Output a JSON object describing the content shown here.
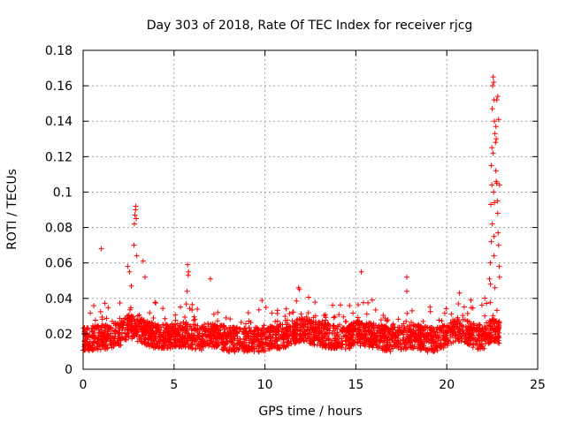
{
  "chart_data": {
    "type": "scatter",
    "title": "Day 303 of 2018, Rate Of TEC Index for receiver rjcg",
    "xlabel": "GPS time / hours",
    "ylabel": "ROTI / TECUs",
    "xlim": [
      0,
      25
    ],
    "ylim": [
      0,
      0.18
    ],
    "x_ticks": [
      "0",
      "5",
      "10",
      "15",
      "20",
      "25"
    ],
    "y_ticks": [
      "0",
      "0.02",
      "0.04",
      "0.06",
      "0.08",
      "0.1",
      "0.12",
      "0.14",
      "0.16",
      "0.18"
    ],
    "x_tick_values": [
      0,
      5,
      10,
      15,
      20,
      25
    ],
    "y_tick_values": [
      0,
      0.02,
      0.04,
      0.06,
      0.08,
      0.1,
      0.12,
      0.14,
      0.16,
      0.18
    ],
    "grid": true,
    "marker": "+",
    "color": "#ff0000",
    "series": [
      {
        "name": "ROTI",
        "baseline_profile": [
          [
            0.0,
            0.016
          ],
          [
            0.5,
            0.017
          ],
          [
            1.0,
            0.017
          ],
          [
            1.5,
            0.018
          ],
          [
            2.0,
            0.019
          ],
          [
            2.5,
            0.024
          ],
          [
            3.0,
            0.022
          ],
          [
            3.5,
            0.019
          ],
          [
            4.0,
            0.018
          ],
          [
            4.5,
            0.018
          ],
          [
            5.0,
            0.018
          ],
          [
            5.5,
            0.019
          ],
          [
            6.0,
            0.018
          ],
          [
            6.5,
            0.017
          ],
          [
            7.0,
            0.019
          ],
          [
            7.5,
            0.018
          ],
          [
            8.0,
            0.016
          ],
          [
            8.5,
            0.016
          ],
          [
            9.0,
            0.016
          ],
          [
            9.5,
            0.016
          ],
          [
            10.0,
            0.016
          ],
          [
            10.5,
            0.017
          ],
          [
            11.0,
            0.018
          ],
          [
            11.5,
            0.02
          ],
          [
            12.0,
            0.022
          ],
          [
            12.5,
            0.02
          ],
          [
            13.0,
            0.019
          ],
          [
            13.5,
            0.018
          ],
          [
            14.0,
            0.018
          ],
          [
            14.5,
            0.017
          ],
          [
            15.0,
            0.02
          ],
          [
            15.5,
            0.019
          ],
          [
            16.0,
            0.018
          ],
          [
            16.5,
            0.017
          ],
          [
            17.0,
            0.016
          ],
          [
            17.5,
            0.017
          ],
          [
            18.0,
            0.018
          ],
          [
            18.5,
            0.017
          ],
          [
            19.0,
            0.016
          ],
          [
            19.5,
            0.016
          ],
          [
            20.0,
            0.018
          ],
          [
            20.5,
            0.022
          ],
          [
            21.0,
            0.021
          ],
          [
            21.5,
            0.018
          ],
          [
            22.0,
            0.017
          ],
          [
            22.5,
            0.022
          ],
          [
            22.9,
            0.02
          ]
        ],
        "peaks": [
          [
            1.0,
            0.068
          ],
          [
            2.45,
            0.058
          ],
          [
            2.55,
            0.055
          ],
          [
            2.65,
            0.047
          ],
          [
            2.8,
            0.07
          ],
          [
            2.82,
            0.082
          ],
          [
            2.85,
            0.087
          ],
          [
            2.88,
            0.09
          ],
          [
            2.9,
            0.092
          ],
          [
            2.92,
            0.085
          ],
          [
            2.95,
            0.064
          ],
          [
            3.3,
            0.061
          ],
          [
            3.4,
            0.052
          ],
          [
            5.75,
            0.059
          ],
          [
            5.8,
            0.055
          ],
          [
            5.78,
            0.053
          ],
          [
            5.72,
            0.044
          ],
          [
            7.0,
            0.051
          ],
          [
            11.85,
            0.046
          ],
          [
            11.9,
            0.045
          ],
          [
            15.3,
            0.055
          ],
          [
            17.8,
            0.052
          ],
          [
            17.8,
            0.044
          ],
          [
            20.7,
            0.043
          ],
          [
            22.35,
            0.051
          ],
          [
            22.4,
            0.06
          ],
          [
            22.42,
            0.093
          ],
          [
            22.45,
            0.115
          ],
          [
            22.48,
            0.125
          ],
          [
            22.5,
            0.147
          ],
          [
            22.52,
            0.16
          ],
          [
            22.55,
            0.165
          ],
          [
            22.58,
            0.162
          ],
          [
            22.6,
            0.152
          ],
          [
            22.62,
            0.14
          ],
          [
            22.65,
            0.133
          ],
          [
            22.68,
            0.128
          ],
          [
            22.7,
            0.112
          ],
          [
            22.72,
            0.106
          ],
          [
            22.75,
            0.105
          ],
          [
            22.78,
            0.095
          ],
          [
            22.8,
            0.088
          ],
          [
            22.82,
            0.077
          ],
          [
            22.85,
            0.07
          ],
          [
            22.88,
            0.058
          ],
          [
            22.9,
            0.052
          ],
          [
            22.55,
            0.122
          ],
          [
            22.5,
            0.082
          ],
          [
            22.6,
            0.064
          ],
          [
            22.45,
            0.072
          ],
          [
            22.4,
            0.048
          ],
          [
            22.65,
            0.046
          ],
          [
            22.7,
            0.137
          ],
          [
            22.75,
            0.152
          ],
          [
            22.8,
            0.154
          ],
          [
            22.85,
            0.141
          ],
          [
            22.72,
            0.13
          ],
          [
            22.58,
            0.1
          ],
          [
            22.62,
            0.094
          ],
          [
            22.48,
            0.104
          ],
          [
            22.9,
            0.104
          ],
          [
            22.6,
            0.075
          ]
        ],
        "point_density_per_hour": 120,
        "spread": 0.007
      }
    ]
  }
}
